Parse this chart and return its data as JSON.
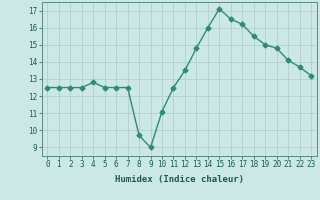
{
  "x": [
    0,
    1,
    2,
    3,
    4,
    5,
    6,
    7,
    8,
    9,
    10,
    11,
    12,
    13,
    14,
    15,
    16,
    17,
    18,
    19,
    20,
    21,
    22,
    23
  ],
  "y": [
    12.5,
    12.5,
    12.5,
    12.5,
    12.8,
    12.5,
    12.5,
    12.5,
    9.7,
    9.0,
    11.1,
    12.5,
    13.5,
    14.8,
    16.0,
    17.1,
    16.5,
    16.2,
    15.5,
    15.0,
    14.8,
    14.1,
    13.7,
    13.2
  ],
  "line_color": "#2e8b74",
  "bg_color": "#cce8e6",
  "grid_color": "#b0d0ce",
  "xlabel": "Humidex (Indice chaleur)",
  "xlim": [
    -0.5,
    23.5
  ],
  "ylim": [
    8.5,
    17.5
  ],
  "yticks": [
    9,
    10,
    11,
    12,
    13,
    14,
    15,
    16,
    17
  ],
  "xtick_labels": [
    "0",
    "1",
    "2",
    "3",
    "4",
    "5",
    "6",
    "7",
    "8",
    "9",
    "10",
    "11",
    "12",
    "13",
    "14",
    "15",
    "16",
    "17",
    "18",
    "19",
    "20",
    "21",
    "22",
    "23"
  ],
  "marker": "D",
  "markersize": 2.5,
  "linewidth": 1.0,
  "tick_fontsize": 5.5,
  "xlabel_fontsize": 6.5
}
